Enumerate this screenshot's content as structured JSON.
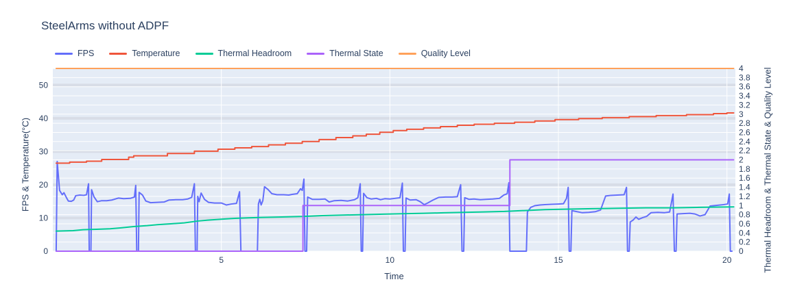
{
  "title": "SteelArms without ADPF",
  "colors": {
    "background": "#ffffff",
    "plot_background": "#E5ECF6",
    "grid_white": "#ffffff",
    "grid_gray_band": "#cfd4dd",
    "text": "#2a3f5f"
  },
  "chart_data": {
    "type": "line",
    "title": "SteelArms without ADPF",
    "xlabel": "Time",
    "ylabel_left": "FPS & Temperature(°C)",
    "ylabel_right": "Thermal Headroom & Thermal State & Quality Level",
    "x_range": [
      0,
      20.25
    ],
    "y_left_range": [
      0,
      55
    ],
    "y_right_range": [
      0,
      4
    ],
    "x_ticks": [
      5,
      10,
      15,
      20
    ],
    "y_left_ticks": [
      0,
      10,
      20,
      30,
      40,
      50
    ],
    "y_right_ticks": [
      0,
      0.2,
      0.4,
      0.6,
      0.8,
      1,
      1.2,
      1.4,
      1.6,
      1.8,
      2,
      2.2,
      2.4,
      2.6,
      2.8,
      3,
      3.2,
      3.4,
      3.6,
      3.8,
      4
    ],
    "grid": true,
    "legend_position": "top-left-horizontal",
    "series": [
      {
        "name": "FPS",
        "axis": "left",
        "color": "#636EFA",
        "points": [
          [
            0.1,
            0
          ],
          [
            0.13,
            27
          ],
          [
            0.2,
            18.3
          ],
          [
            0.28,
            17.0
          ],
          [
            0.33,
            17.6
          ],
          [
            0.4,
            16.2
          ],
          [
            0.46,
            15.1
          ],
          [
            0.55,
            15.0
          ],
          [
            0.62,
            15.4
          ],
          [
            0.68,
            16.7
          ],
          [
            0.8,
            16.9
          ],
          [
            0.92,
            16.8
          ],
          [
            1.0,
            17.0
          ],
          [
            1.06,
            20.3
          ],
          [
            1.08,
            0
          ],
          [
            1.13,
            0
          ],
          [
            1.15,
            18.5
          ],
          [
            1.22,
            16.4
          ],
          [
            1.32,
            14.9
          ],
          [
            1.45,
            15.2
          ],
          [
            1.6,
            15.2
          ],
          [
            1.75,
            15.4
          ],
          [
            1.95,
            16.0
          ],
          [
            2.1,
            15.8
          ],
          [
            2.3,
            15.9
          ],
          [
            2.42,
            16.3
          ],
          [
            2.46,
            19.8
          ],
          [
            2.49,
            0
          ],
          [
            2.54,
            0
          ],
          [
            2.56,
            17.7
          ],
          [
            2.66,
            16.9
          ],
          [
            2.76,
            15.1
          ],
          [
            2.9,
            14.6
          ],
          [
            3.1,
            14.7
          ],
          [
            3.3,
            14.8
          ],
          [
            3.45,
            15.4
          ],
          [
            3.65,
            15.5
          ],
          [
            3.85,
            15.5
          ],
          [
            4.0,
            15.7
          ],
          [
            4.12,
            16.2
          ],
          [
            4.2,
            20.3
          ],
          [
            4.23,
            0
          ],
          [
            4.28,
            0
          ],
          [
            4.3,
            16.5
          ],
          [
            4.34,
            14.9
          ],
          [
            4.4,
            17.5
          ],
          [
            4.5,
            15.6
          ],
          [
            4.62,
            14.7
          ],
          [
            4.8,
            14.5
          ],
          [
            5.0,
            14.5
          ],
          [
            5.15,
            13.9
          ],
          [
            5.3,
            14.2
          ],
          [
            5.45,
            14.4
          ],
          [
            5.54,
            17.9
          ],
          [
            5.58,
            0
          ],
          [
            6.07,
            0
          ],
          [
            6.1,
            14.2
          ],
          [
            6.14,
            15.6
          ],
          [
            6.18,
            13.9
          ],
          [
            6.23,
            15.2
          ],
          [
            6.28,
            19.4
          ],
          [
            6.38,
            18.6
          ],
          [
            6.5,
            17.3
          ],
          [
            6.65,
            17.0
          ],
          [
            6.85,
            17.0
          ],
          [
            7.0,
            16.9
          ],
          [
            7.1,
            17.1
          ],
          [
            7.25,
            17.3
          ],
          [
            7.35,
            18.8
          ],
          [
            7.4,
            18.3
          ],
          [
            7.45,
            21.7
          ],
          [
            7.48,
            0
          ],
          [
            7.53,
            0
          ],
          [
            7.56,
            16.3
          ],
          [
            7.7,
            15.6
          ],
          [
            7.9,
            15.6
          ],
          [
            8.08,
            15.7
          ],
          [
            8.2,
            14.8
          ],
          [
            8.35,
            15.2
          ],
          [
            8.55,
            15.3
          ],
          [
            8.75,
            15.1
          ],
          [
            8.95,
            15.5
          ],
          [
            9.05,
            16.1
          ],
          [
            9.12,
            20.3
          ],
          [
            9.15,
            0
          ],
          [
            9.19,
            0
          ],
          [
            9.22,
            17.4
          ],
          [
            9.32,
            16.1
          ],
          [
            9.45,
            15.7
          ],
          [
            9.6,
            15.9
          ],
          [
            9.72,
            15.5
          ],
          [
            9.85,
            15.8
          ],
          [
            10.0,
            15.7
          ],
          [
            10.15,
            15.9
          ],
          [
            10.3,
            16.1
          ],
          [
            10.37,
            20.5
          ],
          [
            10.4,
            0
          ],
          [
            10.45,
            0
          ],
          [
            10.48,
            16.0
          ],
          [
            10.6,
            15.4
          ],
          [
            10.78,
            15.5
          ],
          [
            10.9,
            14.9
          ],
          [
            11.02,
            14.0
          ],
          [
            11.12,
            14.5
          ],
          [
            11.28,
            15.4
          ],
          [
            11.45,
            16.2
          ],
          [
            11.65,
            16.3
          ],
          [
            11.85,
            16.3
          ],
          [
            12.0,
            16.4
          ],
          [
            12.1,
            20.0
          ],
          [
            12.14,
            0
          ],
          [
            12.19,
            0
          ],
          [
            12.22,
            16.1
          ],
          [
            12.35,
            15.6
          ],
          [
            12.5,
            15.7
          ],
          [
            12.68,
            15.5
          ],
          [
            12.85,
            15.6
          ],
          [
            13.05,
            15.7
          ],
          [
            13.25,
            15.9
          ],
          [
            13.38,
            16.9
          ],
          [
            13.48,
            17.3
          ],
          [
            13.53,
            20.6
          ],
          [
            13.56,
            0
          ],
          [
            14.05,
            0
          ],
          [
            14.08,
            11.8
          ],
          [
            14.18,
            13.2
          ],
          [
            14.3,
            13.7
          ],
          [
            14.45,
            13.9
          ],
          [
            14.6,
            14.0
          ],
          [
            14.8,
            14.1
          ],
          [
            15.0,
            14.2
          ],
          [
            15.15,
            14.3
          ],
          [
            15.24,
            15.9
          ],
          [
            15.29,
            19.2
          ],
          [
            15.32,
            0
          ],
          [
            15.37,
            0
          ],
          [
            15.4,
            12.2
          ],
          [
            15.55,
            11.9
          ],
          [
            15.7,
            11.6
          ],
          [
            15.9,
            11.7
          ],
          [
            16.1,
            11.9
          ],
          [
            16.25,
            12.4
          ],
          [
            16.4,
            16.6
          ],
          [
            16.55,
            16.8
          ],
          [
            16.75,
            16.9
          ],
          [
            16.95,
            17.0
          ],
          [
            17.02,
            19.2
          ],
          [
            17.05,
            0
          ],
          [
            17.1,
            0
          ],
          [
            17.13,
            8.8
          ],
          [
            17.22,
            9.4
          ],
          [
            17.3,
            10.3
          ],
          [
            17.38,
            9.6
          ],
          [
            17.5,
            10.1
          ],
          [
            17.62,
            10.5
          ],
          [
            17.75,
            11.6
          ],
          [
            17.95,
            11.7
          ],
          [
            18.15,
            11.6
          ],
          [
            18.3,
            11.8
          ],
          [
            18.4,
            17.2
          ],
          [
            18.44,
            0
          ],
          [
            18.49,
            0
          ],
          [
            18.52,
            11.2
          ],
          [
            18.7,
            11.3
          ],
          [
            18.9,
            11.4
          ],
          [
            19.05,
            11.2
          ],
          [
            19.2,
            10.6
          ],
          [
            19.35,
            11.0
          ],
          [
            19.5,
            13.6
          ],
          [
            19.7,
            13.8
          ],
          [
            19.9,
            14.0
          ],
          [
            20.02,
            14.2
          ],
          [
            20.07,
            17.2
          ],
          [
            20.1,
            0
          ],
          [
            20.15,
            0
          ]
        ]
      },
      {
        "name": "Temperature",
        "axis": "left",
        "color": "#EF553B",
        "points": [
          [
            0.1,
            26.5
          ],
          [
            0.5,
            26.5
          ],
          [
            0.5,
            26.8
          ],
          [
            1.0,
            26.8
          ],
          [
            1.0,
            27.1
          ],
          [
            1.45,
            27.1
          ],
          [
            1.45,
            27.6
          ],
          [
            2.25,
            27.6
          ],
          [
            2.25,
            28.3
          ],
          [
            2.4,
            28.3
          ],
          [
            2.4,
            28.7
          ],
          [
            3.4,
            28.7
          ],
          [
            3.4,
            29.4
          ],
          [
            4.2,
            29.4
          ],
          [
            4.2,
            30.1
          ],
          [
            4.9,
            30.1
          ],
          [
            4.9,
            30.7
          ],
          [
            5.4,
            30.7
          ],
          [
            5.4,
            31.1
          ],
          [
            5.9,
            31.1
          ],
          [
            5.9,
            31.5
          ],
          [
            6.4,
            31.5
          ],
          [
            6.4,
            32.0
          ],
          [
            6.9,
            32.0
          ],
          [
            6.9,
            32.5
          ],
          [
            7.4,
            32.5
          ],
          [
            7.4,
            33.0
          ],
          [
            7.9,
            33.0
          ],
          [
            7.9,
            33.6
          ],
          [
            8.4,
            33.6
          ],
          [
            8.4,
            34.2
          ],
          [
            8.9,
            34.2
          ],
          [
            8.9,
            34.7
          ],
          [
            9.3,
            34.7
          ],
          [
            9.3,
            35.2
          ],
          [
            9.7,
            35.2
          ],
          [
            9.7,
            35.8
          ],
          [
            10.1,
            35.8
          ],
          [
            10.1,
            36.3
          ],
          [
            10.5,
            36.3
          ],
          [
            10.5,
            36.7
          ],
          [
            11.0,
            36.7
          ],
          [
            11.0,
            37.1
          ],
          [
            11.5,
            37.1
          ],
          [
            11.5,
            37.5
          ],
          [
            12.0,
            37.5
          ],
          [
            12.0,
            37.9
          ],
          [
            12.5,
            37.9
          ],
          [
            12.5,
            38.2
          ],
          [
            13.1,
            38.2
          ],
          [
            13.1,
            38.5
          ],
          [
            13.7,
            38.5
          ],
          [
            13.7,
            38.8
          ],
          [
            14.3,
            38.8
          ],
          [
            14.3,
            39.2
          ],
          [
            14.9,
            39.2
          ],
          [
            14.9,
            39.6
          ],
          [
            15.6,
            39.6
          ],
          [
            15.6,
            39.9
          ],
          [
            16.3,
            39.9
          ],
          [
            16.3,
            40.2
          ],
          [
            17.1,
            40.2
          ],
          [
            17.1,
            40.5
          ],
          [
            17.9,
            40.5
          ],
          [
            17.9,
            40.8
          ],
          [
            18.8,
            40.8
          ],
          [
            18.8,
            41.1
          ],
          [
            19.6,
            41.1
          ],
          [
            19.6,
            41.4
          ],
          [
            20.0,
            41.4
          ],
          [
            20.0,
            41.6
          ],
          [
            20.2,
            41.6
          ]
        ]
      },
      {
        "name": "Thermal Headroom",
        "axis": "right",
        "color": "#00CC96",
        "points": [
          [
            0.1,
            0.44
          ],
          [
            0.6,
            0.45
          ],
          [
            0.9,
            0.47
          ],
          [
            1.3,
            0.48
          ],
          [
            1.7,
            0.49
          ],
          [
            2.0,
            0.51
          ],
          [
            2.4,
            0.54
          ],
          [
            2.8,
            0.56
          ],
          [
            3.1,
            0.58
          ],
          [
            3.5,
            0.6
          ],
          [
            3.9,
            0.62
          ],
          [
            4.3,
            0.66
          ],
          [
            4.6,
            0.68
          ],
          [
            5.0,
            0.7
          ],
          [
            5.4,
            0.72
          ],
          [
            5.8,
            0.73
          ],
          [
            6.2,
            0.74
          ],
          [
            6.8,
            0.75
          ],
          [
            7.4,
            0.76
          ],
          [
            8.0,
            0.78
          ],
          [
            8.6,
            0.79
          ],
          [
            9.2,
            0.8
          ],
          [
            9.8,
            0.81
          ],
          [
            10.4,
            0.82
          ],
          [
            11.0,
            0.83
          ],
          [
            11.6,
            0.84
          ],
          [
            12.2,
            0.85
          ],
          [
            12.8,
            0.86
          ],
          [
            13.4,
            0.87
          ],
          [
            14.0,
            0.89
          ],
          [
            14.6,
            0.91
          ],
          [
            15.2,
            0.92
          ],
          [
            16.0,
            0.93
          ],
          [
            16.8,
            0.94
          ],
          [
            17.6,
            0.95
          ],
          [
            18.4,
            0.95
          ],
          [
            19.2,
            0.96
          ],
          [
            20.2,
            0.97
          ]
        ]
      },
      {
        "name": "Thermal State",
        "axis": "right",
        "color": "#AB63FA",
        "points": [
          [
            0.1,
            0
          ],
          [
            7.42,
            0
          ],
          [
            7.42,
            1
          ],
          [
            13.56,
            1
          ],
          [
            13.56,
            2
          ],
          [
            20.2,
            2
          ]
        ]
      },
      {
        "name": "Quality Level",
        "axis": "right",
        "color": "#FFA15A",
        "points": [
          [
            0.1,
            4
          ],
          [
            20.2,
            4
          ]
        ]
      }
    ]
  }
}
